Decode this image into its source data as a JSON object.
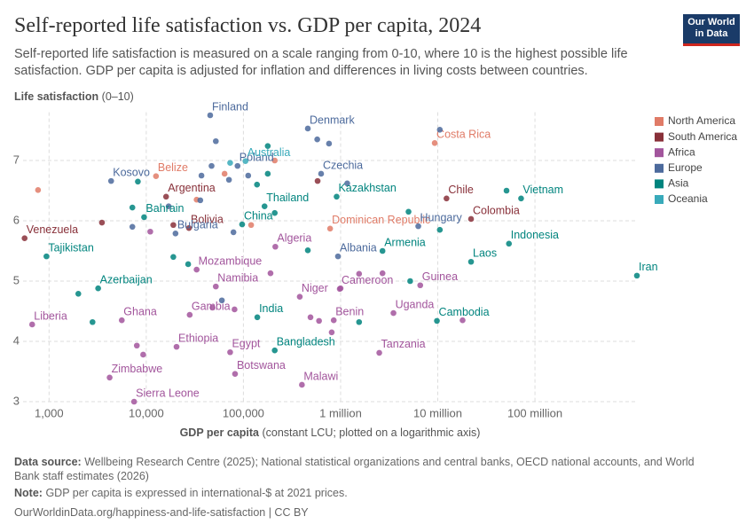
{
  "chart_data": {
    "type": "scatter",
    "title": "Self-reported life satisfaction vs. GDP per capita, 2024",
    "subtitle": "Self-reported life satisfaction is measured on a scale ranging from 0-10, where 10 is the highest possible life satisfaction. GDP per capita is adjusted for inflation and differences in living costs between countries.",
    "y_label": "Life satisfaction",
    "y_label_unit": "(0–10)",
    "x_label": "GDP per capita",
    "x_label_note": "(constant LCU; plotted on a logarithmic axis)",
    "log_x": true,
    "grid": true,
    "legend": "right",
    "xlim": [
      540,
      1120000000
    ],
    "ylim": [
      3,
      7.8
    ],
    "xticks": [
      {
        "value": 1000,
        "label": "1,000"
      },
      {
        "value": 10000,
        "label": "10,000"
      },
      {
        "value": 100000,
        "label": "100,000"
      },
      {
        "value": 1000000,
        "label": "1 million"
      },
      {
        "value": 10000000,
        "label": "10 million"
      },
      {
        "value": 100000000,
        "label": "100 million"
      }
    ],
    "yticks": [
      3,
      4,
      5,
      6,
      7
    ],
    "series": [
      {
        "name": "North America",
        "color": "#e07b67",
        "x": [
          9300000,
          12600,
          780000,
          770,
          33000,
          64000,
          210000,
          120000
        ],
        "y": [
          7.29,
          6.74,
          5.87,
          6.51,
          6.35,
          6.78,
          7.0,
          5.93
        ],
        "labels": [
          "Costa Rica",
          "Belize",
          "Dominican Republic",
          null,
          null,
          null,
          null,
          null
        ]
      },
      {
        "name": "South America",
        "color": "#883039",
        "x": [
          560,
          16000,
          12300000,
          22000000,
          27500,
          3500,
          580000,
          19000
        ],
        "y": [
          5.71,
          6.4,
          6.37,
          6.03,
          5.88,
          5.97,
          6.66,
          5.93
        ],
        "labels": [
          "Venezuela",
          "Argentina",
          "Chile",
          "Colombia",
          "Bolivia",
          null,
          null,
          null
        ]
      },
      {
        "name": "Africa",
        "color": "#a2559c",
        "x": [
          213000,
          33000,
          52000,
          980000,
          6600000,
          380000,
          5600,
          28000,
          670,
          850000,
          3500000,
          20500,
          73000,
          2500000,
          4200,
          82000,
          400000,
          7500,
          11000,
          8000,
          9300,
          190000,
          490000,
          600000,
          810000,
          1550000,
          2700000,
          18000000,
          1000000,
          48000,
          81000
        ],
        "y": [
          5.57,
          5.19,
          4.91,
          4.87,
          4.93,
          4.74,
          4.35,
          4.44,
          4.28,
          4.35,
          4.47,
          3.91,
          3.82,
          3.81,
          3.4,
          3.46,
          3.28,
          3.0,
          5.82,
          3.93,
          3.78,
          5.13,
          4.4,
          4.34,
          4.15,
          5.12,
          5.13,
          4.35,
          4.88,
          4.56,
          4.53
        ],
        "labels": [
          "Algeria",
          "Mozambique",
          "Namibia",
          "Cameroon",
          "Guinea",
          "Niger",
          "Ghana",
          "Gambia",
          "Liberia",
          "Benin",
          "Uganda",
          "Ethiopia",
          "Egypt",
          "Tanzania",
          "Zimbabwe",
          "Botswana",
          "Malawi",
          "Sierra Leone",
          null,
          null,
          null,
          null,
          null,
          null,
          null,
          null,
          null,
          null,
          null,
          null,
          null
        ]
      },
      {
        "name": "Europe",
        "color": "#4c6a9c",
        "x": [
          45500,
          460000,
          630000,
          4350,
          87000,
          6300000,
          20000,
          940000,
          10500000,
          52000,
          575000,
          760000,
          47000,
          37000,
          71000,
          112000,
          1170000,
          17000,
          36000,
          79000,
          7200,
          60000
        ],
        "y": [
          7.75,
          7.53,
          6.78,
          6.66,
          6.91,
          5.91,
          5.79,
          5.41,
          7.51,
          7.32,
          7.35,
          7.28,
          6.91,
          6.75,
          6.68,
          6.75,
          6.62,
          6.24,
          6.34,
          5.81,
          5.9,
          4.68
        ],
        "labels": [
          "Finland",
          "Denmark",
          "Czechia",
          "Kosovo",
          "Poland",
          "Hungary",
          "Bulgaria",
          "Albania",
          null,
          null,
          null,
          null,
          null,
          null,
          null,
          null,
          null,
          null,
          null,
          null,
          null,
          null
        ]
      },
      {
        "name": "Asia",
        "color": "#00847e",
        "x": [
          72000000,
          910000,
          165000,
          9500,
          97000,
          940,
          2700000,
          22000000,
          54000000,
          1120000000,
          3200,
          139000,
          9800000,
          210000,
          178000,
          8200,
          138000,
          178000,
          5000000,
          10500000,
          51000000,
          2000,
          2800,
          19000,
          27000,
          210000,
          460000,
          5200000,
          1550000,
          7200
        ],
        "y": [
          6.37,
          6.4,
          6.24,
          6.06,
          5.94,
          5.41,
          5.5,
          5.32,
          5.62,
          5.09,
          4.88,
          4.4,
          4.34,
          3.85,
          7.24,
          6.65,
          6.6,
          6.78,
          6.15,
          5.85,
          6.5,
          4.79,
          4.32,
          5.4,
          5.28,
          6.13,
          5.51,
          5.0,
          4.32,
          6.22
        ],
        "labels": [
          "Vietnam",
          "Kazakhstan",
          "Thailand",
          "Bahrain",
          "China",
          "Tajikistan",
          "Armenia",
          "Laos",
          "Indonesia",
          "Iran",
          "Azerbaijan",
          "India",
          "Cambodia",
          "Bangladesh",
          null,
          null,
          null,
          null,
          null,
          null,
          null,
          null,
          null,
          null,
          null,
          null,
          null,
          null,
          null,
          null
        ]
      },
      {
        "name": "Oceania",
        "color": "#38aaba",
        "x": [
          105000,
          73000
        ],
        "y": [
          6.99,
          6.96
        ],
        "labels": [
          "Australia",
          null
        ]
      }
    ]
  },
  "footer": {
    "source_label": "Data source:",
    "source_text": "Wellbeing Research Centre (2025); National statistical organizations and central banks, OECD national accounts, and World Bank staff estimates (2026)",
    "note_label": "Note:",
    "note_text": "GDP per capita is expressed in international-$ at 2021 prices.",
    "url": "OurWorldinData.org/happiness-and-life-satisfaction | CC BY"
  },
  "logo": {
    "line1": "Our World",
    "line2": "in Data"
  }
}
